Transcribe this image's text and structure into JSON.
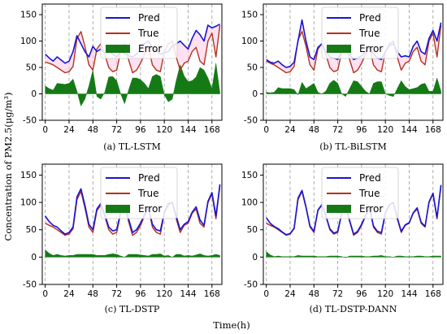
{
  "figure": {
    "ylabel": "Concentration of PM2.5(μg/m³)",
    "xlabel": "Time(h)"
  },
  "colors": {
    "pred": "#1515d8",
    "true": "#b5321c",
    "error": "#157a15",
    "band": "#ffc8e8"
  },
  "chart_data": [
    {
      "type": "line",
      "caption": "(a) TL-LSTM",
      "xlim": [
        -3,
        178
      ],
      "ylim": [
        -50,
        170
      ],
      "xticks": [
        0,
        24,
        48,
        72,
        96,
        120,
        144,
        168
      ],
      "yticks": [
        -50,
        0,
        50,
        100,
        150
      ],
      "legend": [
        "Pred",
        "True",
        "Error"
      ],
      "x_step": 4,
      "series": [
        {
          "name": "Pred",
          "values": [
            75,
            68,
            62,
            70,
            64,
            58,
            62,
            80,
            110,
            95,
            80,
            70,
            90,
            80,
            85,
            78,
            82,
            75,
            70,
            80,
            76,
            72,
            70,
            75,
            85,
            95,
            100,
            88,
            82,
            75,
            78,
            80,
            90,
            95,
            100,
            92,
            85,
            105,
            120,
            112,
            100,
            130,
            125,
            128,
            132
          ]
        },
        {
          "name": "True",
          "values": [
            60,
            58,
            55,
            50,
            45,
            40,
            42,
            52,
            105,
            118,
            90,
            55,
            45,
            85,
            95,
            75,
            50,
            42,
            45,
            80,
            95,
            65,
            40,
            45,
            58,
            75,
            90,
            55,
            45,
            42,
            80,
            95,
            100,
            70,
            45,
            58,
            62,
            80,
            88,
            62,
            55,
            100,
            115,
            70,
            130
          ]
        },
        {
          "name": "Error",
          "values": [
            15,
            10,
            7,
            20,
            19,
            18,
            20,
            28,
            5,
            -23,
            -10,
            15,
            45,
            -5,
            -10,
            3,
            32,
            33,
            25,
            0,
            -19,
            7,
            30,
            30,
            27,
            20,
            10,
            33,
            37,
            33,
            -2,
            -15,
            -10,
            25,
            55,
            34,
            23,
            25,
            32,
            50,
            45,
            30,
            10,
            58,
            2
          ]
        }
      ]
    },
    {
      "type": "line",
      "caption": "(b) TL-BiLSTM",
      "xlim": [
        -3,
        178
      ],
      "ylim": [
        -50,
        170
      ],
      "xticks": [
        0,
        24,
        48,
        72,
        96,
        120,
        144,
        168
      ],
      "yticks": [
        -50,
        0,
        50,
        100,
        150
      ],
      "legend": [
        "Pred",
        "True",
        "Error"
      ],
      "x_step": 4,
      "series": [
        {
          "name": "Pred",
          "values": [
            65,
            60,
            58,
            62,
            55,
            50,
            52,
            60,
            100,
            140,
            100,
            70,
            65,
            88,
            95,
            80,
            70,
            68,
            65,
            80,
            90,
            75,
            65,
            68,
            72,
            80,
            90,
            75,
            68,
            65,
            80,
            92,
            95,
            80,
            70,
            72,
            70,
            90,
            100,
            80,
            75,
            105,
            120,
            100,
            135
          ]
        },
        {
          "name": "True",
          "values": [
            62,
            58,
            55,
            50,
            45,
            40,
            42,
            52,
            102,
            118,
            90,
            55,
            45,
            85,
            95,
            75,
            50,
            42,
            45,
            80,
            95,
            65,
            40,
            45,
            58,
            75,
            90,
            55,
            45,
            42,
            80,
            95,
            100,
            70,
            45,
            58,
            62,
            80,
            88,
            62,
            55,
            100,
            115,
            70,
            130
          ]
        },
        {
          "name": "Error",
          "values": [
            3,
            2,
            3,
            12,
            10,
            10,
            10,
            8,
            -2,
            22,
            10,
            15,
            20,
            3,
            0,
            5,
            20,
            26,
            20,
            0,
            -5,
            10,
            25,
            23,
            14,
            5,
            0,
            20,
            23,
            23,
            0,
            -3,
            -5,
            10,
            25,
            14,
            8,
            10,
            12,
            18,
            20,
            5,
            5,
            30,
            5
          ]
        }
      ]
    },
    {
      "type": "line",
      "caption": "(c) TL-DSTP",
      "xlim": [
        -3,
        178
      ],
      "ylim": [
        -50,
        170
      ],
      "xticks": [
        0,
        24,
        48,
        72,
        96,
        120,
        144,
        168
      ],
      "yticks": [
        -50,
        0,
        50,
        100,
        150
      ],
      "legend": [
        "Pred",
        "True",
        "Error"
      ],
      "x_step": 4,
      "series": [
        {
          "name": "Pred",
          "values": [
            75,
            65,
            58,
            55,
            48,
            42,
            45,
            55,
            110,
            125,
            95,
            60,
            50,
            88,
            98,
            78,
            55,
            48,
            50,
            82,
            95,
            70,
            45,
            50,
            62,
            78,
            92,
            60,
            50,
            48,
            82,
            98,
            100,
            75,
            50,
            60,
            65,
            82,
            92,
            68,
            58,
            102,
            118,
            75,
            133
          ]
        },
        {
          "name": "True",
          "values": [
            62,
            58,
            55,
            50,
            45,
            40,
            42,
            52,
            105,
            120,
            90,
            55,
            45,
            85,
            95,
            75,
            50,
            42,
            45,
            80,
            95,
            65,
            40,
            45,
            58,
            75,
            90,
            55,
            45,
            42,
            80,
            95,
            100,
            70,
            45,
            58,
            62,
            80,
            88,
            62,
            55,
            100,
            115,
            70,
            130
          ]
        },
        {
          "name": "Error",
          "values": [
            13,
            7,
            3,
            5,
            3,
            2,
            3,
            3,
            5,
            5,
            5,
            5,
            5,
            3,
            3,
            3,
            5,
            6,
            5,
            2,
            0,
            5,
            5,
            5,
            4,
            3,
            2,
            5,
            5,
            6,
            2,
            3,
            0,
            5,
            5,
            2,
            3,
            2,
            4,
            6,
            3,
            2,
            3,
            5,
            3
          ]
        }
      ]
    },
    {
      "type": "line",
      "caption": "(d) TL-DSTP-DANN",
      "xlim": [
        -3,
        178
      ],
      "ylim": [
        -50,
        170
      ],
      "xticks": [
        0,
        24,
        48,
        72,
        96,
        120,
        144,
        168
      ],
      "yticks": [
        -50,
        0,
        50,
        100,
        150
      ],
      "legend": [
        "Pred",
        "True",
        "Error"
      ],
      "x_step": 4,
      "series": [
        {
          "name": "Pred",
          "values": [
            72,
            62,
            56,
            52,
            46,
            41,
            43,
            53,
            108,
            122,
            92,
            57,
            47,
            86,
            96,
            76,
            52,
            44,
            47,
            81,
            94,
            67,
            42,
            47,
            60,
            76,
            91,
            57,
            47,
            45,
            81,
            96,
            100,
            72,
            47,
            59,
            63,
            81,
            90,
            64,
            56,
            101,
            117,
            72,
            132
          ]
        },
        {
          "name": "True",
          "values": [
            62,
            58,
            55,
            50,
            45,
            40,
            42,
            52,
            105,
            120,
            90,
            55,
            45,
            85,
            95,
            75,
            50,
            42,
            45,
            80,
            95,
            65,
            40,
            45,
            58,
            75,
            90,
            55,
            45,
            42,
            80,
            95,
            100,
            70,
            45,
            58,
            62,
            80,
            88,
            62,
            55,
            100,
            115,
            70,
            130
          ]
        },
        {
          "name": "Error",
          "values": [
            10,
            4,
            1,
            2,
            1,
            1,
            1,
            1,
            3,
            2,
            2,
            2,
            2,
            1,
            1,
            1,
            2,
            2,
            2,
            1,
            -1,
            2,
            2,
            2,
            2,
            1,
            1,
            2,
            2,
            3,
            1,
            1,
            0,
            2,
            2,
            1,
            1,
            1,
            2,
            2,
            1,
            1,
            2,
            2,
            2
          ]
        }
      ]
    }
  ]
}
